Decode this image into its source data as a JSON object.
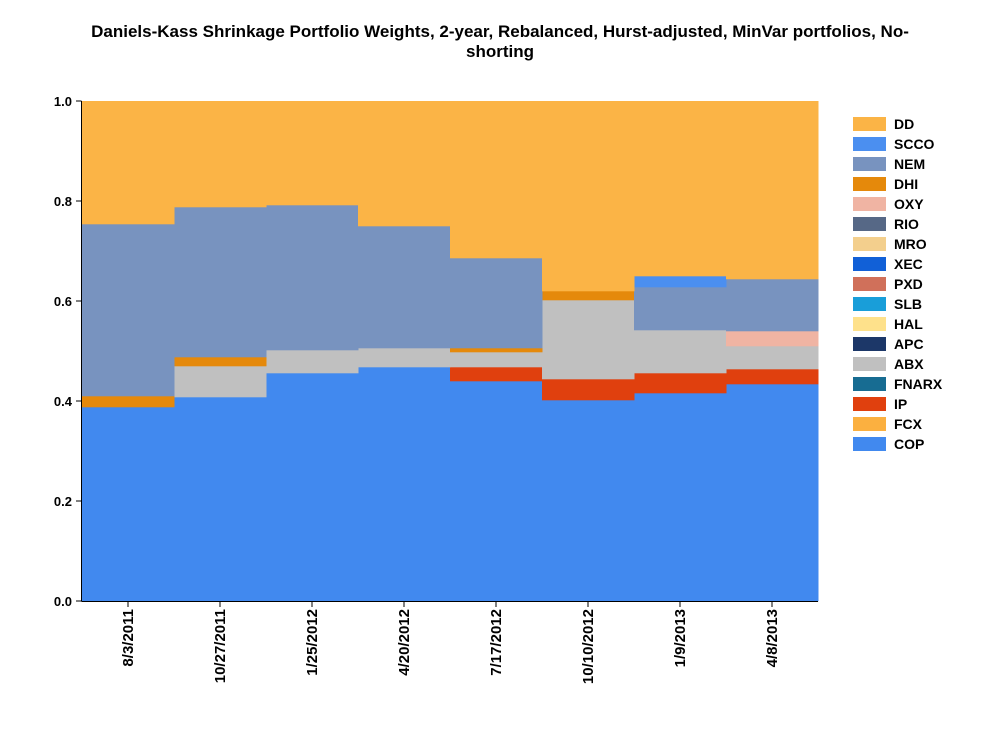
{
  "chart_data": {
    "type": "area",
    "stacked": true,
    "step": true,
    "title_line1": "Daniels-Kass Shrinkage Portfolio Weights, 2-year, Rebalanced, Hurst-adjusted, MinVar portfolios, No-",
    "title_line2": "shorting",
    "xlabel": "",
    "ylabel": "",
    "ylim": [
      0,
      1
    ],
    "y_ticks": [
      "0.0",
      "0.2",
      "0.4",
      "0.6",
      "0.8",
      "1.0"
    ],
    "categories": [
      "8/3/2011",
      "10/27/2011",
      "1/25/2012",
      "4/20/2012",
      "7/17/2012",
      "10/10/2012",
      "1/9/2013",
      "4/8/2013"
    ],
    "legend_position": "right",
    "series": [
      {
        "name": "COP",
        "color": "#4189ef",
        "values": [
          0.388,
          0.408,
          0.456,
          0.468,
          0.44,
          0.402,
          0.416,
          0.434
        ]
      },
      {
        "name": "FCX",
        "color": "#fbb040",
        "values": [
          0,
          0,
          0,
          0,
          0,
          0,
          0,
          0
        ]
      },
      {
        "name": "IP",
        "color": "#e0400e",
        "values": [
          0,
          0,
          0,
          0,
          0.028,
          0.042,
          0.04,
          0.03
        ]
      },
      {
        "name": "FNARX",
        "color": "#176c92",
        "values": [
          0,
          0,
          0,
          0,
          0,
          0,
          0,
          0
        ]
      },
      {
        "name": "ABX",
        "color": "#c0c0c0",
        "values": [
          0,
          0.062,
          0.046,
          0.038,
          0.03,
          0.158,
          0.086,
          0.046
        ]
      },
      {
        "name": "APC",
        "color": "#1c3768",
        "values": [
          0,
          0,
          0,
          0,
          0,
          0,
          0,
          0
        ]
      },
      {
        "name": "HAL",
        "color": "#fee18b",
        "values": [
          0,
          0,
          0,
          0,
          0,
          0,
          0,
          0
        ]
      },
      {
        "name": "SLB",
        "color": "#199ed9",
        "values": [
          0,
          0,
          0,
          0,
          0,
          0,
          0,
          0
        ]
      },
      {
        "name": "PXD",
        "color": "#d0705a",
        "values": [
          0,
          0,
          0,
          0,
          0,
          0,
          0,
          0
        ]
      },
      {
        "name": "XEC",
        "color": "#1160d7",
        "values": [
          0,
          0,
          0,
          0,
          0,
          0,
          0,
          0
        ]
      },
      {
        "name": "MRO",
        "color": "#f3cf8d",
        "values": [
          0,
          0,
          0,
          0,
          0,
          0,
          0,
          0
        ]
      },
      {
        "name": "RIO",
        "color": "#566886",
        "values": [
          0,
          0,
          0,
          0,
          0,
          0,
          0,
          0
        ]
      },
      {
        "name": "OXY",
        "color": "#f0b4a3",
        "values": [
          0,
          0,
          0,
          0,
          0,
          0,
          0,
          0.03
        ]
      },
      {
        "name": "DHI",
        "color": "#e5890b",
        "values": [
          0.022,
          0.018,
          0,
          0,
          0.008,
          0.018,
          0,
          0
        ]
      },
      {
        "name": "NEM",
        "color": "#7893bf",
        "values": [
          0.344,
          0.3,
          0.29,
          0.244,
          0.18,
          0,
          0.086,
          0.104
        ]
      },
      {
        "name": "SCCO",
        "color": "#4b8ff0",
        "values": [
          0,
          0,
          0,
          0,
          0,
          0,
          0.022,
          0
        ]
      },
      {
        "name": "DD",
        "color": "#fbb446",
        "values": [
          0.246,
          0.212,
          0.208,
          0.25,
          0.314,
          0.38,
          0.35,
          0.356
        ]
      }
    ]
  }
}
